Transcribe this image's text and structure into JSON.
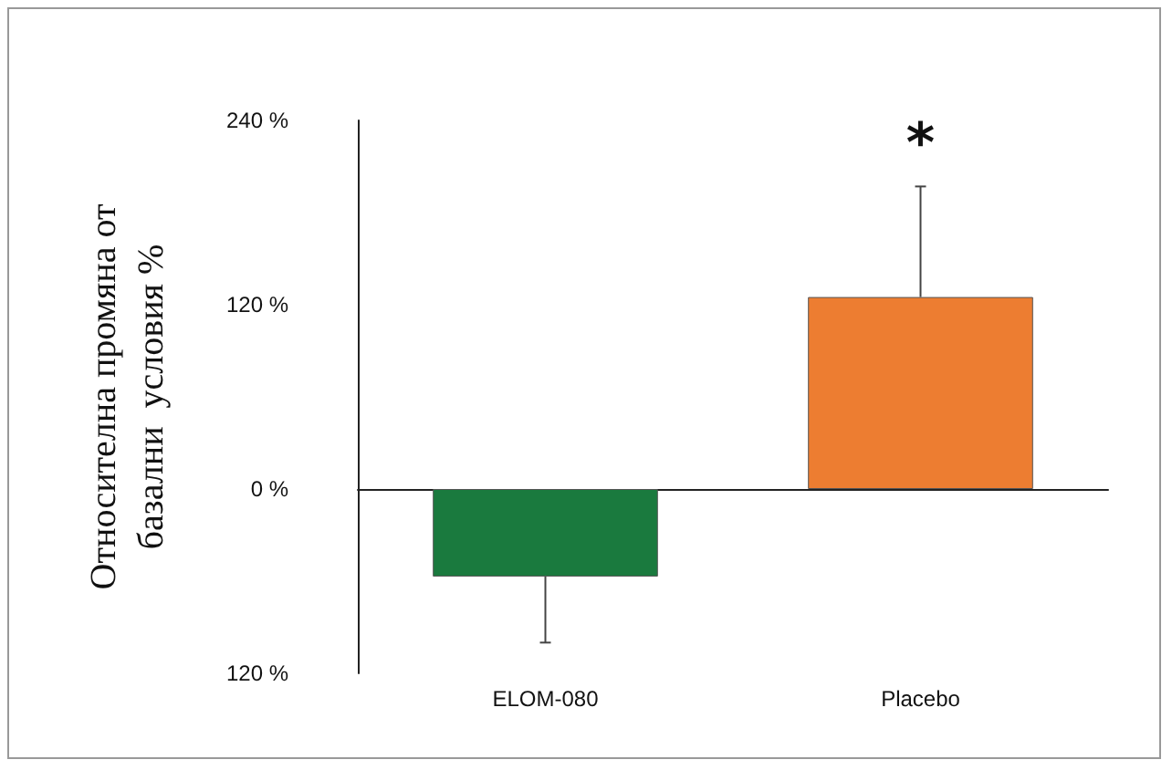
{
  "chart_data": {
    "type": "bar",
    "ylabel": "Относителна промяна от\nбазални  условия %",
    "categories": [
      "ELOM-080",
      "Placebo"
    ],
    "values": [
      -57,
      125
    ],
    "colors": [
      "#1a7a3e",
      "#ed7d31"
    ],
    "errors": [
      [
        -100,
        -57
      ],
      [
        125,
        197
      ]
    ],
    "ylim": [
      -120,
      240
    ],
    "yticks": [
      {
        "value": -120,
        "label": "120 %"
      },
      {
        "value": 0,
        "label": "0 %"
      },
      {
        "value": 120,
        "label": "120 %"
      },
      {
        "value": 240,
        "label": "240 %"
      }
    ],
    "annotations": [
      "*"
    ]
  }
}
